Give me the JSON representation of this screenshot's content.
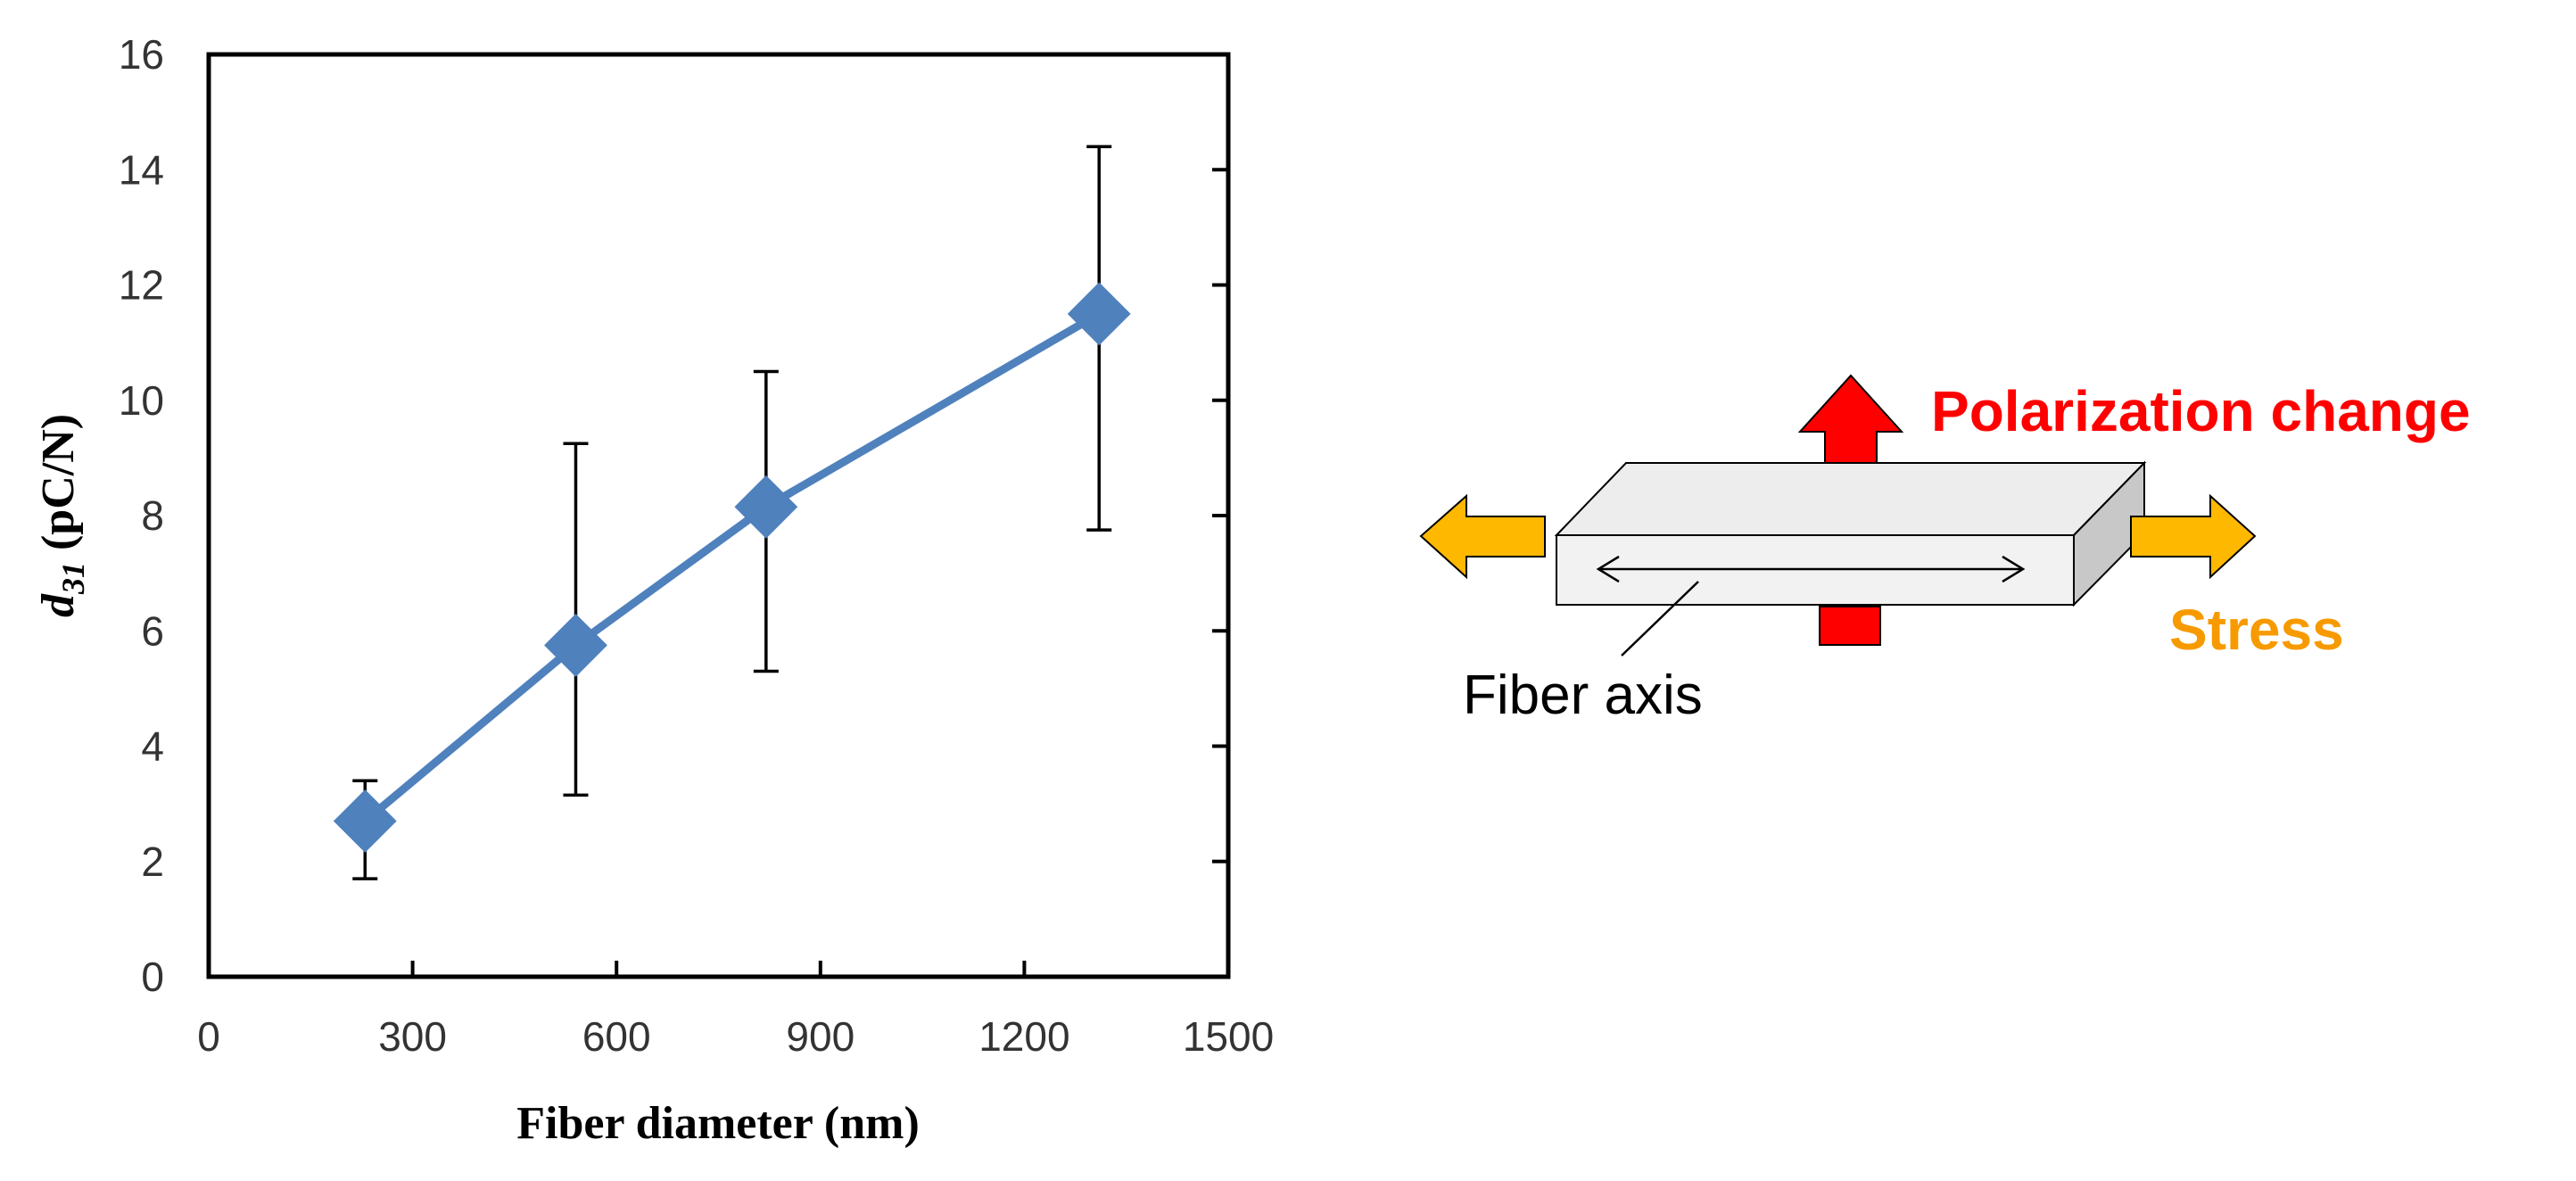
{
  "chart_data": {
    "type": "line",
    "title": "",
    "xlabel": "Fiber diameter (nm)",
    "ylabel_symbol": "d",
    "ylabel_subscript": "31",
    "ylabel_unit": " (pC/N)",
    "xlim": [
      0,
      1500
    ],
    "ylim": [
      0,
      16
    ],
    "xticks": [
      "0",
      "300",
      "600",
      "900",
      "1200",
      "1500"
    ],
    "yticks": [
      "0",
      "2",
      "4",
      "6",
      "8",
      "10",
      "12",
      "14",
      "16"
    ],
    "grid": false,
    "legend": "none",
    "series": [
      {
        "x": [
          230,
          540,
          820,
          1310
        ],
        "y": [
          2.7,
          5.75,
          8.15,
          11.5
        ],
        "err_low": [
          1.7,
          3.15,
          5.3,
          7.75
        ],
        "err_high": [
          3.4,
          9.25,
          10.5,
          14.4
        ],
        "color": "#4f81bd",
        "marker": "diamond"
      }
    ]
  },
  "diagram": {
    "polarization_label": "Polarization change",
    "stress_label": "Stress",
    "fiber_axis_label": "Fiber axis",
    "colors": {
      "polarization": "#ff0000",
      "stress": "#ffb800",
      "stress_text": "#f79a00",
      "box_face": "#f2f2f2",
      "box_top": "#ededed",
      "box_side": "#c8c8c8"
    }
  }
}
